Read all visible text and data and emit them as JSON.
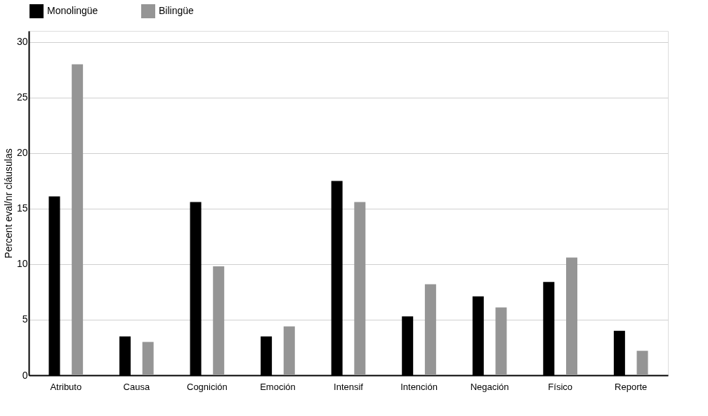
{
  "chart_data": {
    "type": "bar",
    "ylabel": "Percent eval/nr cláusulas",
    "categories": [
      "Atributo",
      "Causa",
      "Cognición",
      "Emoción",
      "Intensif",
      "Intención",
      "Negación",
      "Físico",
      "Reporte"
    ],
    "series": [
      {
        "name": "Monolingüe",
        "color": "#000000",
        "values": [
          16.1,
          3.5,
          15.6,
          3.5,
          17.5,
          5.3,
          7.1,
          8.4,
          4.0
        ]
      },
      {
        "name": "Bilingüe",
        "color": "#959595",
        "values": [
          28.0,
          3.0,
          9.8,
          4.4,
          15.6,
          8.2,
          6.1,
          10.6,
          2.2
        ]
      }
    ],
    "ylim": [
      0,
      31
    ],
    "yticks": [
      0,
      5,
      10,
      15,
      20,
      25,
      30
    ],
    "grid": "y",
    "legend": "top"
  }
}
